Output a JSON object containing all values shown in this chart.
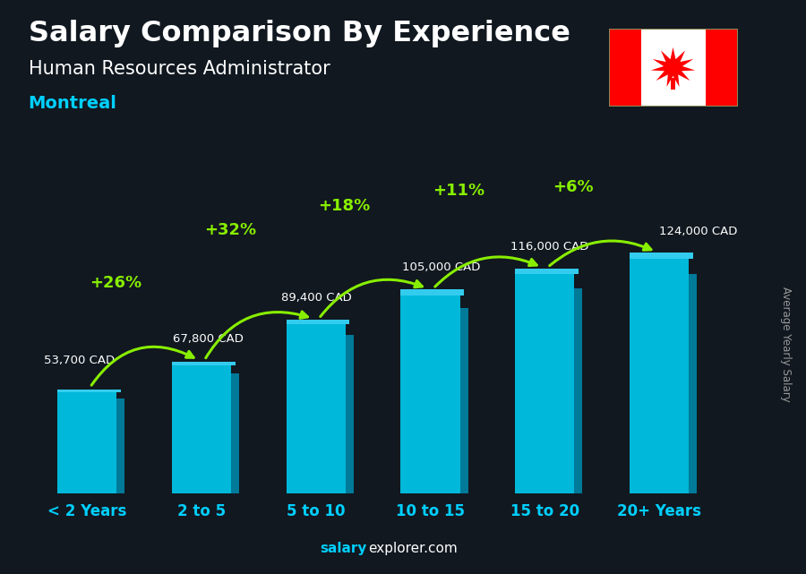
{
  "title": "Salary Comparison By Experience",
  "subtitle": "Human Resources Administrator",
  "city": "Montreal",
  "categories": [
    "< 2 Years",
    "2 to 5",
    "5 to 10",
    "10 to 15",
    "15 to 20",
    "20+ Years"
  ],
  "values": [
    53700,
    67800,
    89400,
    105000,
    116000,
    124000
  ],
  "labels": [
    "53,700 CAD",
    "67,800 CAD",
    "89,400 CAD",
    "105,000 CAD",
    "116,000 CAD",
    "124,000 CAD"
  ],
  "pct_changes": [
    "+26%",
    "+32%",
    "+18%",
    "+11%",
    "+6%"
  ],
  "bar_color": "#00b8d9",
  "bar_side_color": "#007a99",
  "bar_top_color": "#33ccee",
  "bg_color": "#111820",
  "title_color": "#ffffff",
  "subtitle_color": "#ffffff",
  "city_color": "#00cfff",
  "label_color": "#ffffff",
  "pct_color": "#88ee00",
  "arrow_color": "#88ee00",
  "xtick_color": "#00cfff",
  "watermark_color": "#ffffff",
  "ylabel_text": "Average Yearly Salary",
  "ylabel_color": "#999999",
  "ylim": [
    0,
    155000
  ],
  "bar_width": 0.52,
  "fig_width": 9.0,
  "fig_height": 6.41
}
